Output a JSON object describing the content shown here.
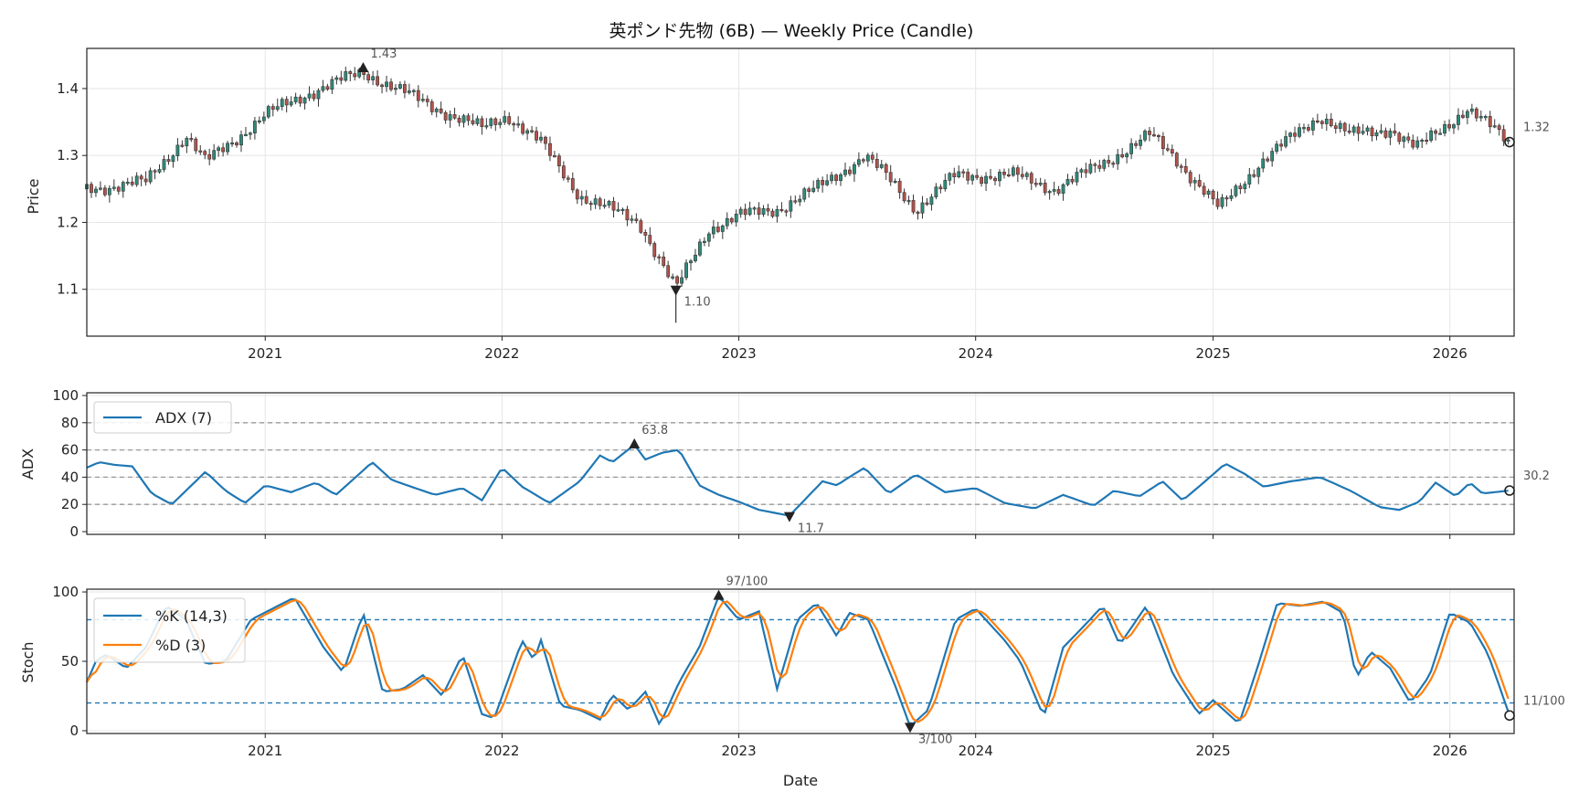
{
  "colors": {
    "up": "#2e8b7a",
    "down": "#b5524a",
    "wick": "#333333",
    "adx": "#1f77b4",
    "k": "#1f77b4",
    "d": "#ff7f0e",
    "grid": "#e6e6e6",
    "ref": "#999999",
    "stochRef": "#1f77b4",
    "marker": "#222222"
  },
  "chart_data": {
    "type": "line",
    "title": "英ポンド先物 (6B) — Weekly Price (Candle)",
    "xlabel": "Date",
    "x_range": [
      "2020-04-01",
      "2026-04-10"
    ],
    "x_ticks": [
      "2021",
      "2022",
      "2023",
      "2024",
      "2025",
      "2026"
    ],
    "panels": [
      {
        "name": "price",
        "ylabel": "Price",
        "ylim": [
          1.03,
          1.46
        ],
        "yticks": [
          "1.1",
          "1.2",
          "1.3",
          "1.4"
        ],
        "anchors": [
          [
            "2020-04-01",
            1.25
          ],
          [
            "2020-07-01",
            1.26
          ],
          [
            "2020-09-01",
            1.33
          ],
          [
            "2020-10-01",
            1.29
          ],
          [
            "2021-01-01",
            1.36
          ],
          [
            "2021-03-01",
            1.39
          ],
          [
            "2021-06-01",
            1.425
          ],
          [
            "2021-09-01",
            1.38
          ],
          [
            "2021-12-01",
            1.34
          ],
          [
            "2022-01-10",
            1.36
          ],
          [
            "2022-03-01",
            1.32
          ],
          [
            "2022-05-01",
            1.24
          ],
          [
            "2022-06-15",
            1.22
          ],
          [
            "2022-08-01",
            1.2
          ],
          [
            "2022-09-26",
            1.1
          ],
          [
            "2022-11-15",
            1.19
          ],
          [
            "2023-01-01",
            1.21
          ],
          [
            "2023-03-01",
            1.22
          ],
          [
            "2023-05-01",
            1.25
          ],
          [
            "2023-07-14",
            1.3
          ],
          [
            "2023-08-15",
            1.27
          ],
          [
            "2023-10-01",
            1.22
          ],
          [
            "2023-12-01",
            1.27
          ],
          [
            "2024-03-01",
            1.27
          ],
          [
            "2024-05-01",
            1.25
          ],
          [
            "2024-07-01",
            1.28
          ],
          [
            "2024-09-25",
            1.33
          ],
          [
            "2024-11-01",
            1.3
          ],
          [
            "2025-01-10",
            1.22
          ],
          [
            "2025-03-15",
            1.29
          ],
          [
            "2025-06-15",
            1.36
          ],
          [
            "2025-08-01",
            1.33
          ],
          [
            "2025-10-01",
            1.34
          ],
          [
            "2025-11-10",
            1.31
          ],
          [
            "2026-01-27",
            1.37
          ],
          [
            "2026-04-03",
            1.32
          ]
        ],
        "annotations": [
          {
            "label": "1.43",
            "date": "2021-06-01",
            "value": 1.43,
            "kind": "max"
          },
          {
            "label": "1.10",
            "date": "2022-09-26",
            "value": 1.1,
            "kind": "min"
          },
          {
            "label": "1.32",
            "date": "2026-04-03",
            "value": 1.32,
            "kind": "last"
          }
        ]
      },
      {
        "name": "adx",
        "ylabel": "ADX",
        "ylim": [
          -2,
          102
        ],
        "yticks": [
          "0",
          "20",
          "40",
          "60",
          "80",
          "100"
        ],
        "reference_lines": [
          20,
          40,
          60,
          80
        ],
        "legend": [
          "ADX (7)"
        ],
        "anchors": [
          [
            "2020-04-01",
            47
          ],
          [
            "2020-04-20",
            51
          ],
          [
            "2020-05-15",
            49
          ],
          [
            "2020-06-10",
            48
          ],
          [
            "2020-07-10",
            28
          ],
          [
            "2020-08-10",
            20
          ],
          [
            "2020-10-01",
            44
          ],
          [
            "2020-11-01",
            30
          ],
          [
            "2020-12-01",
            21
          ],
          [
            "2021-01-01",
            34
          ],
          [
            "2021-02-10",
            29
          ],
          [
            "2021-03-20",
            36
          ],
          [
            "2021-04-20",
            27
          ],
          [
            "2021-06-15",
            51
          ],
          [
            "2021-07-15",
            38
          ],
          [
            "2021-08-20",
            32
          ],
          [
            "2021-09-20",
            27
          ],
          [
            "2021-11-01",
            32
          ],
          [
            "2021-12-01",
            23
          ],
          [
            "2022-01-01",
            47
          ],
          [
            "2022-02-01",
            33
          ],
          [
            "2022-03-15",
            21
          ],
          [
            "2022-05-01",
            37
          ],
          [
            "2022-06-01",
            56
          ],
          [
            "2022-06-20",
            51
          ],
          [
            "2022-07-24",
            63.8
          ],
          [
            "2022-08-10",
            53
          ],
          [
            "2022-09-05",
            58
          ],
          [
            "2022-10-01",
            60
          ],
          [
            "2022-11-01",
            34
          ],
          [
            "2022-12-01",
            27
          ],
          [
            "2023-01-01",
            22
          ],
          [
            "2023-02-01",
            16
          ],
          [
            "2023-03-20",
            11.7
          ],
          [
            "2023-05-10",
            37
          ],
          [
            "2023-06-01",
            34
          ],
          [
            "2023-06-20",
            40
          ],
          [
            "2023-07-14",
            47
          ],
          [
            "2023-08-20",
            28
          ],
          [
            "2023-10-01",
            42
          ],
          [
            "2023-11-15",
            29
          ],
          [
            "2024-01-01",
            32
          ],
          [
            "2024-02-15",
            21
          ],
          [
            "2024-04-01",
            17
          ],
          [
            "2024-05-15",
            27
          ],
          [
            "2024-07-01",
            19
          ],
          [
            "2024-08-01",
            30
          ],
          [
            "2024-09-10",
            26
          ],
          [
            "2024-10-15",
            37
          ],
          [
            "2024-11-15",
            23
          ],
          [
            "2024-12-15",
            35
          ],
          [
            "2025-01-20",
            50
          ],
          [
            "2025-02-20",
            42
          ],
          [
            "2025-03-20",
            33
          ],
          [
            "2025-05-01",
            37
          ],
          [
            "2025-06-15",
            40
          ],
          [
            "2025-08-01",
            30
          ],
          [
            "2025-09-15",
            18
          ],
          [
            "2025-10-15",
            16
          ],
          [
            "2025-11-15",
            22
          ],
          [
            "2025-12-10",
            36
          ],
          [
            "2026-01-10",
            26
          ],
          [
            "2026-02-01",
            36
          ],
          [
            "2026-02-20",
            28
          ],
          [
            "2026-04-03",
            30.2
          ]
        ],
        "annotations": [
          {
            "label": "63.8",
            "date": "2022-07-24",
            "value": 63.8,
            "kind": "max"
          },
          {
            "label": "11.7",
            "date": "2023-03-20",
            "value": 11.7,
            "kind": "min"
          },
          {
            "label": "30.2",
            "date": "2026-04-03",
            "value": 30.2,
            "kind": "last"
          }
        ]
      },
      {
        "name": "stoch",
        "ylabel": "Stoch",
        "ylim": [
          -2,
          102
        ],
        "yticks": [
          "0",
          "50",
          "100"
        ],
        "reference_lines": [
          20,
          80
        ],
        "legend": [
          "%K (14,3)",
          "%D (3)"
        ],
        "k_anchors": [
          [
            "2020-04-01",
            35
          ],
          [
            "2020-04-15",
            50
          ],
          [
            "2020-05-01",
            55
          ],
          [
            "2020-06-01",
            45
          ],
          [
            "2020-07-01",
            60
          ],
          [
            "2020-08-01",
            90
          ],
          [
            "2020-09-01",
            80
          ],
          [
            "2020-10-01",
            48
          ],
          [
            "2020-11-01",
            50
          ],
          [
            "2020-12-10",
            80
          ],
          [
            "2021-02-15",
            96
          ],
          [
            "2021-04-01",
            60
          ],
          [
            "2021-05-01",
            42
          ],
          [
            "2021-06-01",
            85
          ],
          [
            "2021-07-01",
            28
          ],
          [
            "2021-08-01",
            30
          ],
          [
            "2021-09-01",
            40
          ],
          [
            "2021-10-01",
            25
          ],
          [
            "2021-11-01",
            55
          ],
          [
            "2021-12-01",
            12
          ],
          [
            "2021-12-20",
            9
          ],
          [
            "2022-02-01",
            65
          ],
          [
            "2022-02-20",
            50
          ],
          [
            "2022-03-01",
            67
          ],
          [
            "2022-04-01",
            18
          ],
          [
            "2022-05-01",
            15
          ],
          [
            "2022-06-01",
            8
          ],
          [
            "2022-06-20",
            26
          ],
          [
            "2022-07-15",
            15
          ],
          [
            "2022-08-10",
            28
          ],
          [
            "2022-09-01",
            4
          ],
          [
            "2022-10-01",
            35
          ],
          [
            "2022-11-01",
            60
          ],
          [
            "2022-12-01",
            97
          ],
          [
            "2023-01-01",
            80
          ],
          [
            "2023-02-01",
            86
          ],
          [
            "2023-03-01",
            30
          ],
          [
            "2023-04-01",
            80
          ],
          [
            "2023-05-01",
            92
          ],
          [
            "2023-06-01",
            68
          ],
          [
            "2023-06-20",
            85
          ],
          [
            "2023-07-20",
            80
          ],
          [
            "2023-09-01",
            30
          ],
          [
            "2023-09-22",
            3
          ],
          [
            "2023-10-20",
            15
          ],
          [
            "2023-12-01",
            80
          ],
          [
            "2024-01-01",
            88
          ],
          [
            "2024-02-15",
            65
          ],
          [
            "2024-03-10",
            50
          ],
          [
            "2024-04-15",
            10
          ],
          [
            "2024-05-15",
            60
          ],
          [
            "2024-06-15",
            75
          ],
          [
            "2024-07-15",
            90
          ],
          [
            "2024-08-10",
            62
          ],
          [
            "2024-09-20",
            90
          ],
          [
            "2024-11-01",
            40
          ],
          [
            "2024-12-10",
            12
          ],
          [
            "2025-01-01",
            22
          ],
          [
            "2025-02-10",
            5
          ],
          [
            "2025-03-10",
            45
          ],
          [
            "2025-04-10",
            92
          ],
          [
            "2025-05-15",
            90
          ],
          [
            "2025-06-20",
            93
          ],
          [
            "2025-07-20",
            85
          ],
          [
            "2025-08-10",
            38
          ],
          [
            "2025-09-01",
            57
          ],
          [
            "2025-10-01",
            45
          ],
          [
            "2025-11-01",
            20
          ],
          [
            "2025-12-01",
            40
          ],
          [
            "2026-01-01",
            85
          ],
          [
            "2026-02-01",
            78
          ],
          [
            "2026-03-01",
            55
          ],
          [
            "2026-04-03",
            11
          ]
        ],
        "annotations": [
          {
            "label": "97/100",
            "date": "2022-12-01",
            "value": 97,
            "kind": "max"
          },
          {
            "label": "3/100",
            "date": "2023-09-22",
            "value": 3,
            "kind": "min"
          },
          {
            "label": "11/100",
            "date": "2026-04-03",
            "value": 11,
            "kind": "last"
          }
        ]
      }
    ]
  }
}
